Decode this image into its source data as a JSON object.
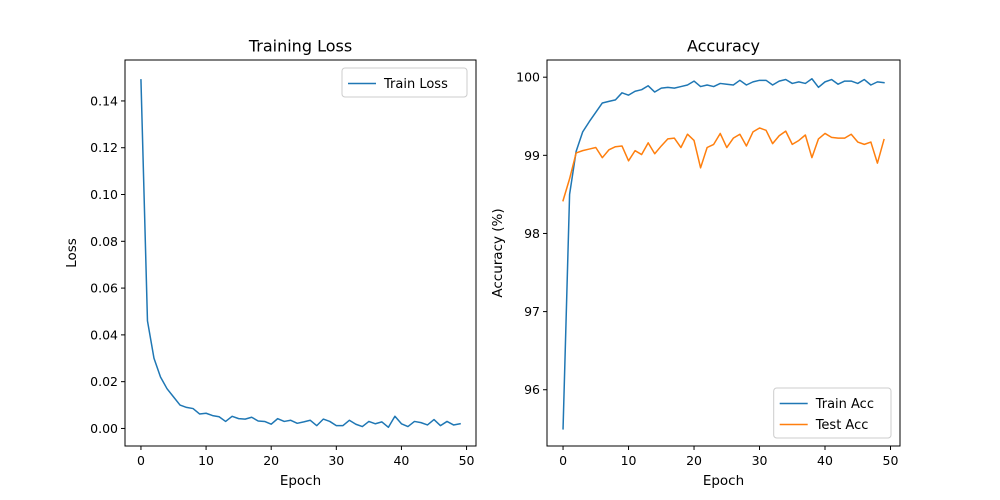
{
  "chart_data": [
    {
      "type": "line",
      "title": "Training Loss",
      "xlabel": "Epoch",
      "ylabel": "Loss",
      "xlim": [
        -2.45,
        51.45
      ],
      "ylim": [
        -0.0075,
        0.1575
      ],
      "xticks": [
        0,
        10,
        20,
        30,
        40,
        50
      ],
      "xtick_labels": [
        "0",
        "10",
        "20",
        "30",
        "40",
        "50"
      ],
      "yticks": [
        0.0,
        0.02,
        0.04,
        0.06,
        0.08,
        0.1,
        0.12,
        0.14
      ],
      "ytick_labels": [
        "0.00",
        "0.02",
        "0.04",
        "0.06",
        "0.08",
        "0.10",
        "0.12",
        "0.14"
      ],
      "legend": "top-right",
      "grid": false,
      "series": [
        {
          "name": "Train Loss",
          "color": "#1f77b4",
          "x": [
            0,
            1,
            2,
            3,
            4,
            5,
            6,
            7,
            8,
            9,
            10,
            11,
            12,
            13,
            14,
            15,
            16,
            17,
            18,
            19,
            20,
            21,
            22,
            23,
            24,
            25,
            26,
            27,
            28,
            29,
            30,
            31,
            32,
            33,
            34,
            35,
            36,
            37,
            38,
            39,
            40,
            41,
            42,
            43,
            44,
            45,
            46,
            47,
            48,
            49
          ],
          "y": [
            0.149,
            0.046,
            0.03,
            0.022,
            0.017,
            0.0135,
            0.01,
            0.009,
            0.0085,
            0.0062,
            0.0065,
            0.0055,
            0.005,
            0.003,
            0.0052,
            0.0042,
            0.004,
            0.0048,
            0.0032,
            0.003,
            0.0018,
            0.0042,
            0.003,
            0.0035,
            0.0022,
            0.0028,
            0.0035,
            0.0012,
            0.004,
            0.003,
            0.0012,
            0.0012,
            0.0035,
            0.0018,
            0.0008,
            0.003,
            0.002,
            0.0028,
            0.0005,
            0.0052,
            0.002,
            0.0008,
            0.003,
            0.0025,
            0.0015,
            0.0038,
            0.0012,
            0.003,
            0.0015,
            0.002
          ]
        }
      ]
    },
    {
      "type": "line",
      "title": "Accuracy",
      "xlabel": "Epoch",
      "ylabel": "Accuracy (%)",
      "xlim": [
        -2.45,
        51.45
      ],
      "ylim": [
        95.28,
        100.22
      ],
      "xticks": [
        0,
        10,
        20,
        30,
        40,
        50
      ],
      "xtick_labels": [
        "0",
        "10",
        "20",
        "30",
        "40",
        "50"
      ],
      "yticks": [
        96,
        97,
        98,
        99,
        100
      ],
      "ytick_labels": [
        "96",
        "97",
        "98",
        "99",
        "100"
      ],
      "legend": "lower-right",
      "grid": false,
      "series": [
        {
          "name": "Train Acc",
          "color": "#1f77b4",
          "x": [
            0,
            1,
            2,
            3,
            4,
            5,
            6,
            7,
            8,
            9,
            10,
            11,
            12,
            13,
            14,
            15,
            16,
            17,
            18,
            19,
            20,
            21,
            22,
            23,
            24,
            25,
            26,
            27,
            28,
            29,
            30,
            31,
            32,
            33,
            34,
            35,
            36,
            37,
            38,
            39,
            40,
            41,
            42,
            43,
            44,
            45,
            46,
            47,
            48,
            49
          ],
          "y": [
            95.5,
            98.5,
            99.05,
            99.3,
            99.43,
            99.55,
            99.67,
            99.69,
            99.71,
            99.8,
            99.77,
            99.82,
            99.84,
            99.89,
            99.81,
            99.86,
            99.87,
            99.86,
            99.88,
            99.9,
            99.95,
            99.88,
            99.9,
            99.88,
            99.92,
            99.91,
            99.9,
            99.96,
            99.9,
            99.94,
            99.96,
            99.96,
            99.9,
            99.95,
            99.97,
            99.92,
            99.94,
            99.92,
            99.98,
            99.87,
            99.94,
            99.97,
            99.91,
            99.95,
            99.95,
            99.92,
            99.97,
            99.9,
            99.94,
            99.93
          ]
        },
        {
          "name": "Test Acc",
          "color": "#ff7f0e",
          "x": [
            0,
            1,
            2,
            3,
            4,
            5,
            6,
            7,
            8,
            9,
            10,
            11,
            12,
            13,
            14,
            15,
            16,
            17,
            18,
            19,
            20,
            21,
            22,
            23,
            24,
            25,
            26,
            27,
            28,
            29,
            30,
            31,
            32,
            33,
            34,
            35,
            36,
            37,
            38,
            39,
            40,
            41,
            42,
            43,
            44,
            45,
            46,
            47,
            48,
            49
          ],
          "y": [
            98.42,
            98.7,
            99.03,
            99.06,
            99.08,
            99.1,
            98.97,
            99.07,
            99.11,
            99.12,
            98.93,
            99.06,
            99.01,
            99.16,
            99.02,
            99.12,
            99.21,
            99.22,
            99.1,
            99.27,
            99.19,
            98.84,
            99.1,
            99.14,
            99.28,
            99.1,
            99.22,
            99.27,
            99.12,
            99.3,
            99.35,
            99.32,
            99.15,
            99.25,
            99.31,
            99.14,
            99.19,
            99.26,
            98.97,
            99.21,
            99.28,
            99.23,
            99.22,
            99.22,
            99.27,
            99.17,
            99.14,
            99.17,
            98.9,
            99.2
          ]
        }
      ]
    }
  ]
}
